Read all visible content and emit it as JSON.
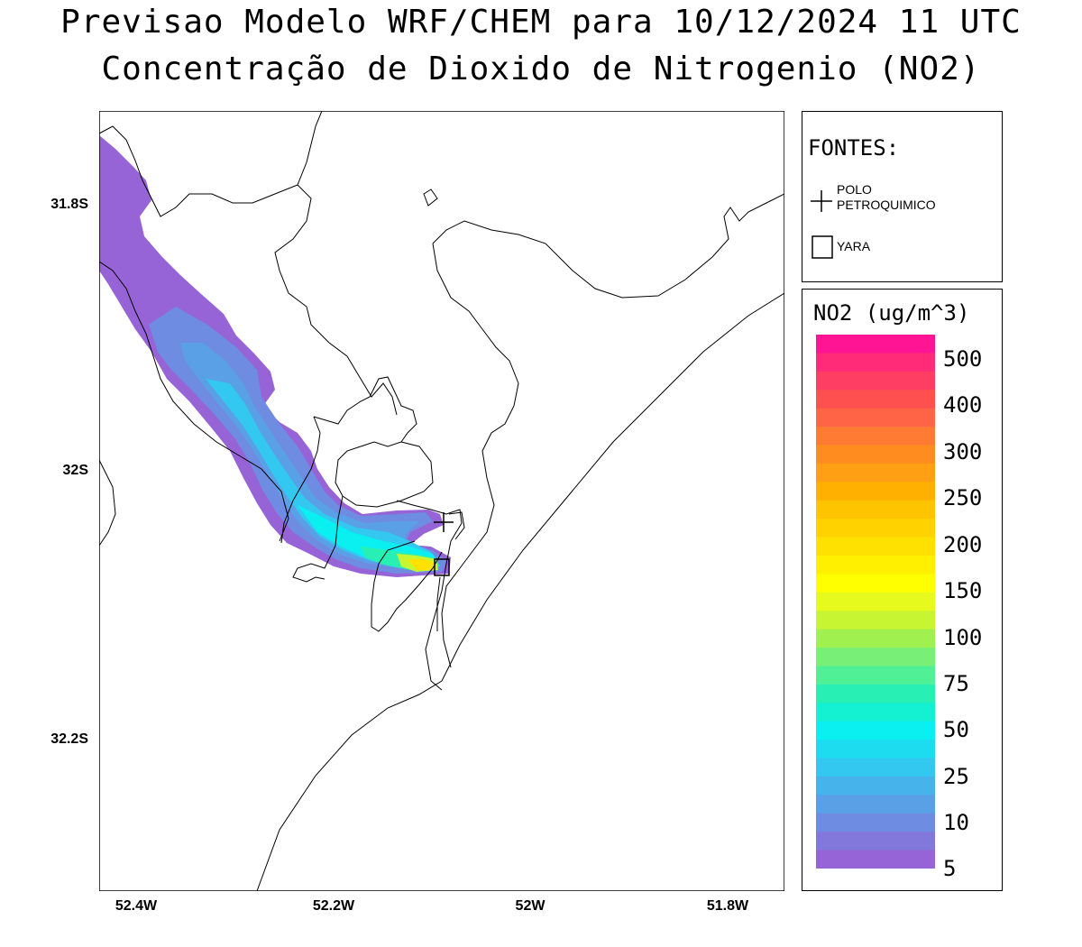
{
  "title_line1": "Previsao Modelo WRF/CHEM para 10/12/2024 11 UTC",
  "title_line2": "Concentração de Dioxido de Nitrogenio (NO2)",
  "map": {
    "lat_labels": [
      "31.8S",
      "32S",
      "32.2S"
    ],
    "lon_labels": [
      "52.4W",
      "52.2W",
      "52W",
      "51.8W"
    ]
  },
  "sources_legend": {
    "title": "FONTES:",
    "items": [
      {
        "symbol": "plus",
        "label_line1": "POLO",
        "label_line2": "PETROQUIMICO"
      },
      {
        "symbol": "square",
        "label_line1": "YARA",
        "label_line2": ""
      }
    ]
  },
  "scale_legend": {
    "title": "NO2 (ug/m^3)",
    "labels": [
      "500",
      "400",
      "300",
      "250",
      "200",
      "150",
      "100",
      "75",
      "50",
      "25",
      "10",
      "5"
    ],
    "colors": [
      "#ff1493",
      "#ff2a78",
      "#ff3e64",
      "#ff5050",
      "#ff6446",
      "#ff7a32",
      "#ff8c1e",
      "#ffa014",
      "#ffb000",
      "#ffc400",
      "#ffd200",
      "#ffe100",
      "#fff000",
      "#ffff00",
      "#e6fa1e",
      "#c8f532",
      "#a0f050",
      "#78f078",
      "#50f096",
      "#28f0b4",
      "#14f0d2",
      "#0af0f0",
      "#1edcf0",
      "#32c8f0",
      "#46b4eb",
      "#5aa0e6",
      "#6e8ce1",
      "#8278dc",
      "#9664d7"
    ]
  }
}
